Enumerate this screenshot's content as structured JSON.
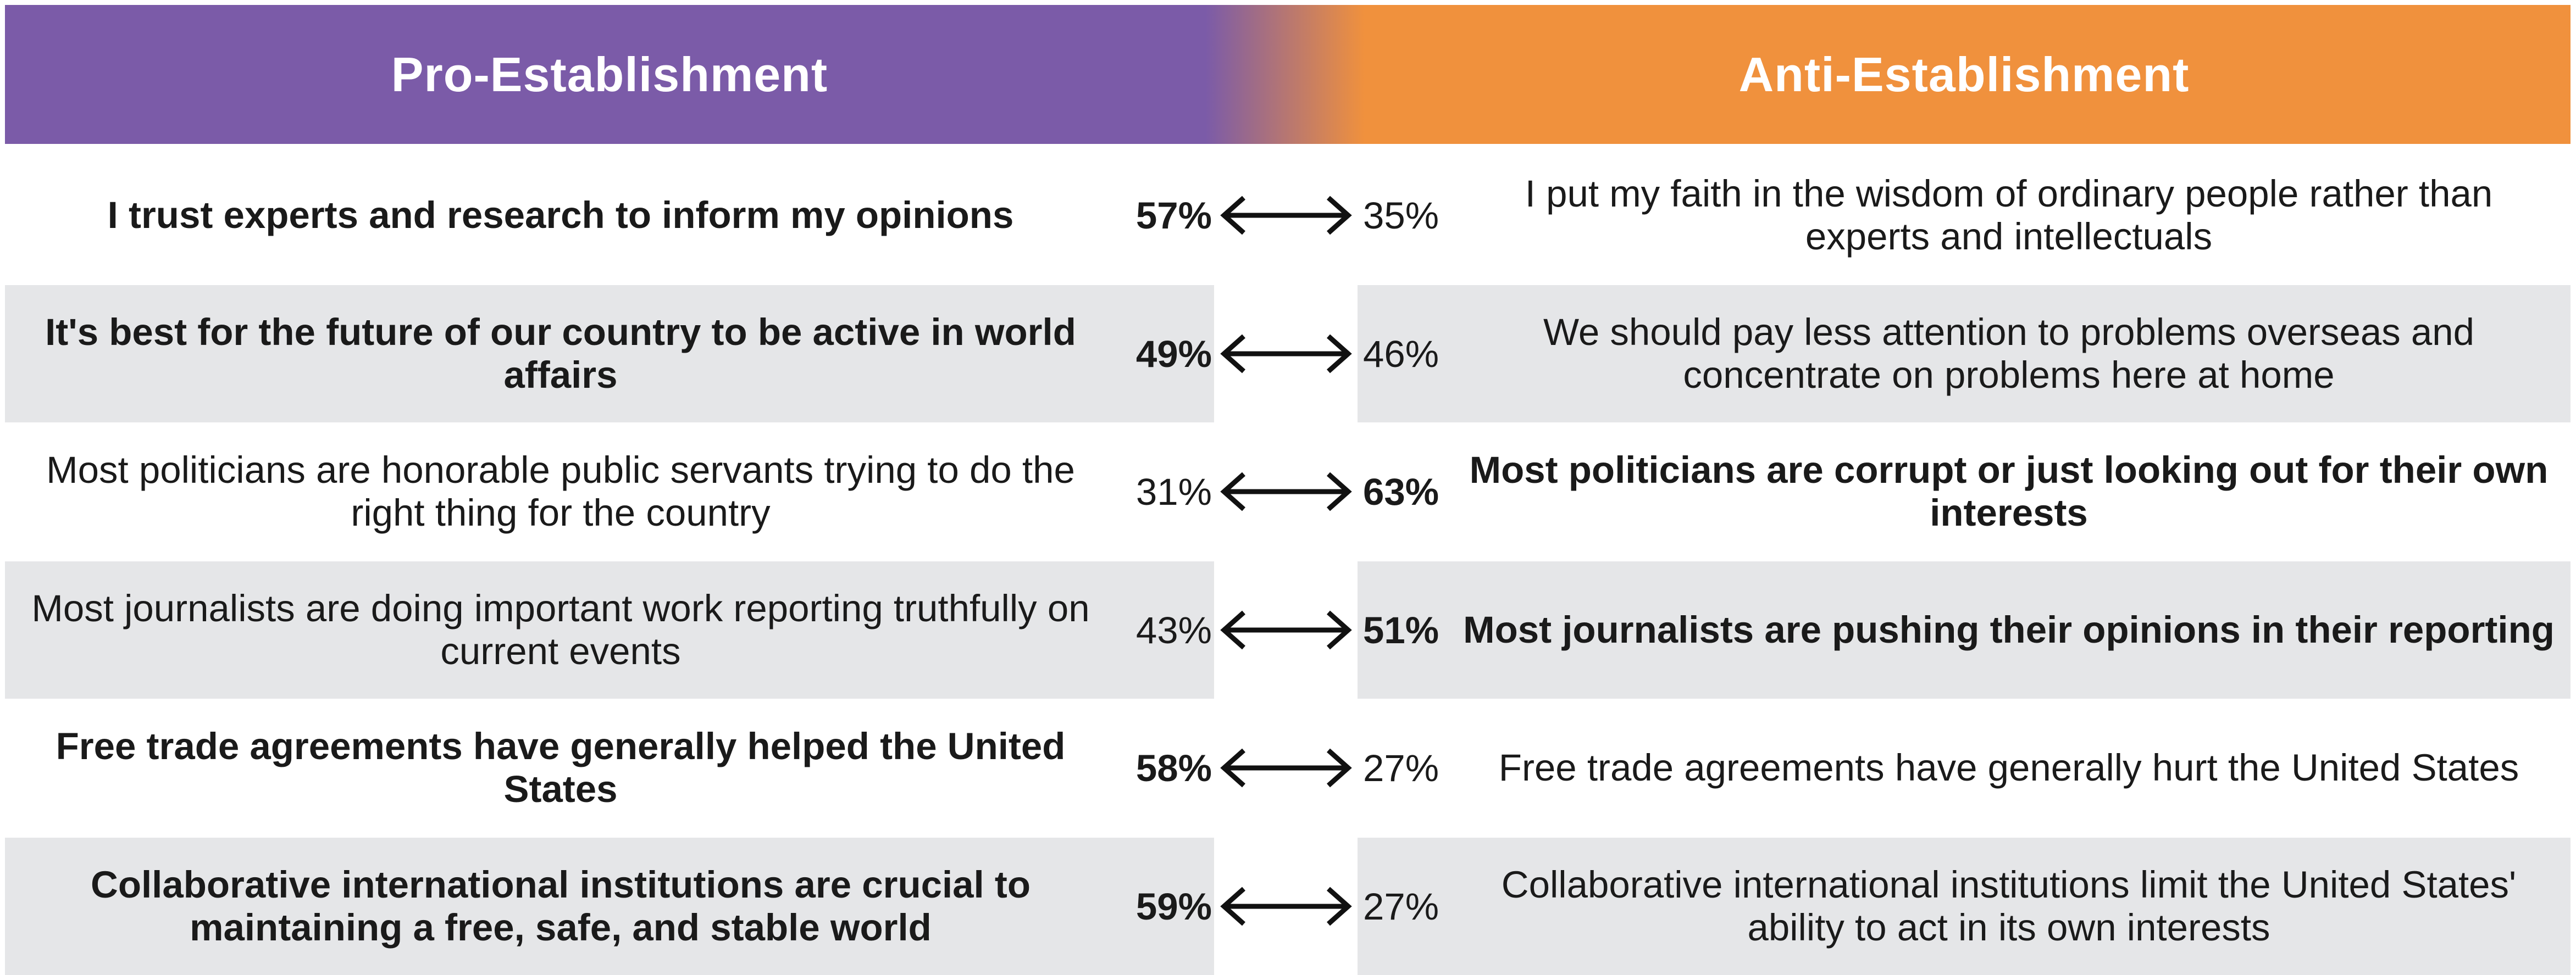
{
  "colors": {
    "pro": "#7b5ba8",
    "anti": "#f0913d",
    "row_shade": "#e5e6e8",
    "white": "#ffffff",
    "text": "#1a1a1a"
  },
  "header": {
    "left_label": "Pro-Establishment",
    "right_label": "Anti-Establishment"
  },
  "chart_data": {
    "type": "table",
    "columns": [
      "Pro-Establishment",
      "Anti-Establishment"
    ],
    "rows": [
      {
        "pro_text": "I trust experts and research to inform my opinions",
        "pro_pct": "57%",
        "pro_value": 57,
        "anti_text": "I put my faith in the wisdom of ordinary people rather than experts and intellectuals",
        "anti_pct": "35%",
        "anti_value": 35,
        "bold_side": "pro",
        "shaded": false
      },
      {
        "pro_text": "It's best for the future of our country to be active in world affairs",
        "pro_pct": "49%",
        "pro_value": 49,
        "anti_text": "We should pay less attention to problems overseas and concentrate on problems here at home",
        "anti_pct": "46%",
        "anti_value": 46,
        "bold_side": "pro",
        "shaded": true
      },
      {
        "pro_text": "Most politicians are honorable public servants trying to do the right thing for the country",
        "pro_pct": "31%",
        "pro_value": 31,
        "anti_text": "Most politicians are corrupt or just looking out for their own interests",
        "anti_pct": "63%",
        "anti_value": 63,
        "bold_side": "anti",
        "shaded": false
      },
      {
        "pro_text": "Most journalists are doing important work reporting truthfully on current events",
        "pro_pct": "43%",
        "pro_value": 43,
        "anti_text": "Most journalists are pushing their opinions in their reporting",
        "anti_pct": "51%",
        "anti_value": 51,
        "bold_side": "anti",
        "shaded": true
      },
      {
        "pro_text": "Free trade agreements have generally helped the United States",
        "pro_pct": "58%",
        "pro_value": 58,
        "anti_text": "Free trade agreements have generally hurt the United States",
        "anti_pct": "27%",
        "anti_value": 27,
        "bold_side": "pro",
        "shaded": false
      },
      {
        "pro_text": "Collaborative international institutions are crucial to maintaining a free, safe, and stable world",
        "pro_pct": "59%",
        "pro_value": 59,
        "anti_text": "Collaborative international institutions limit the United States' ability to act in its own interests",
        "anti_pct": "27%",
        "anti_value": 27,
        "bold_side": "pro",
        "shaded": true
      }
    ]
  },
  "icons": {
    "connector": "double-headed-arrow-icon"
  }
}
